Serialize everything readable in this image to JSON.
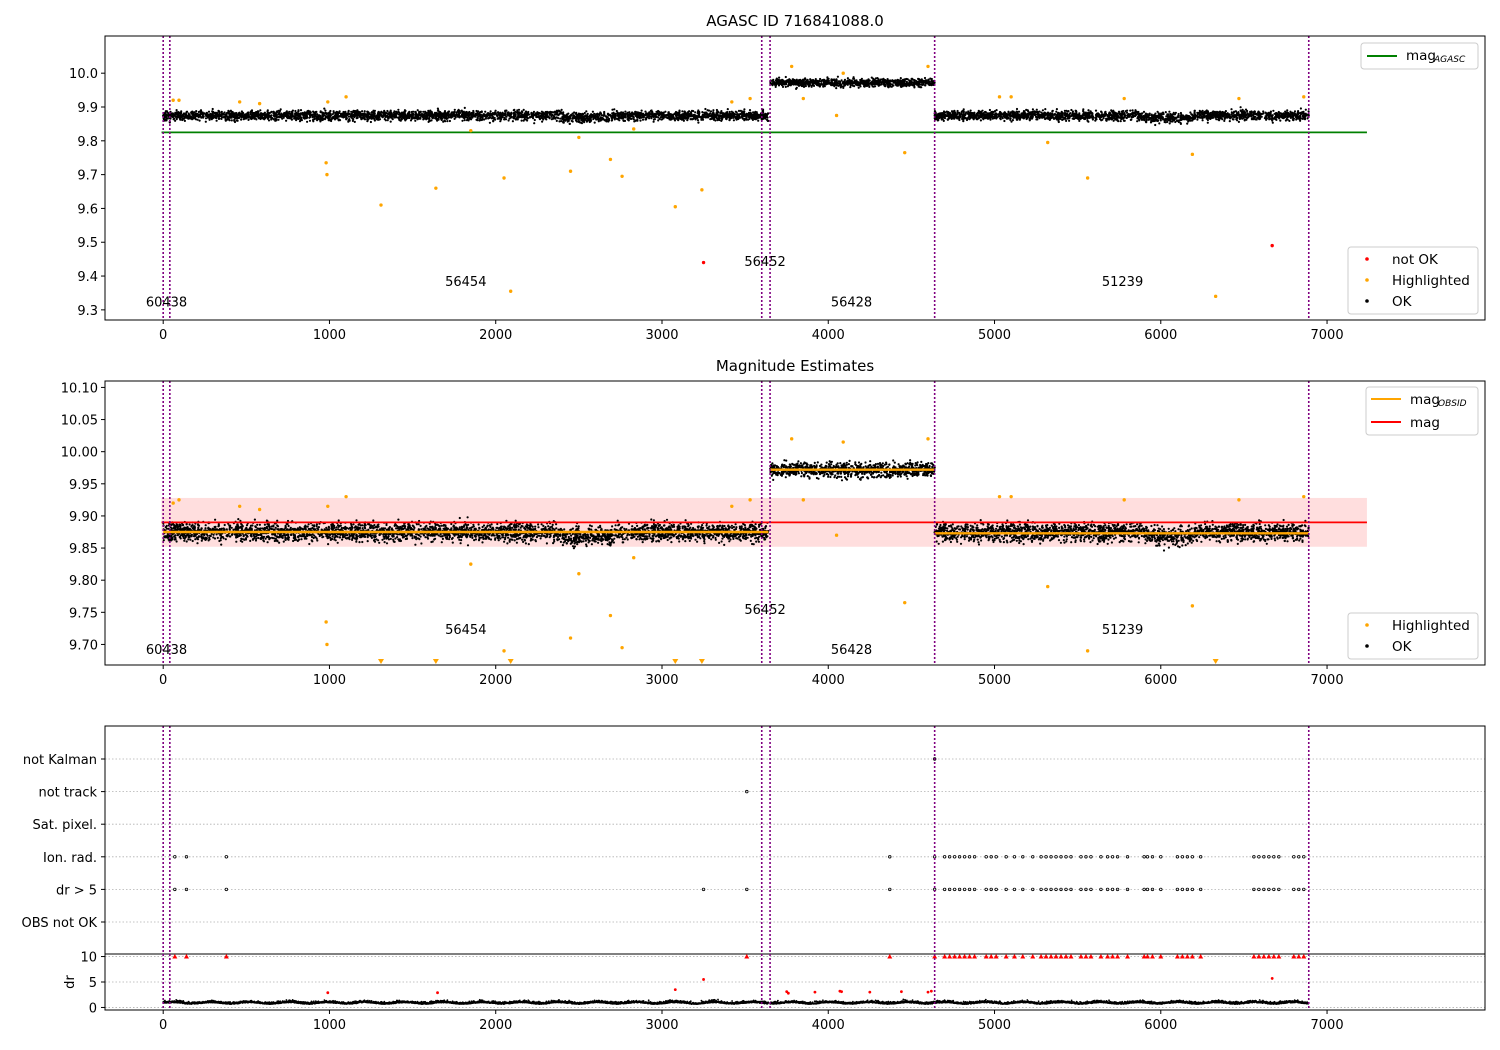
{
  "chart_data": [
    {
      "type": "scatter",
      "title": "AGASC ID 716841088.0",
      "xlim": [
        -350,
        7950
      ],
      "ylim": [
        9.27,
        10.11
      ],
      "xticks": [
        0,
        1000,
        2000,
        3000,
        4000,
        5000,
        6000,
        7000
      ],
      "yticks": [
        9.3,
        9.4,
        9.5,
        9.6,
        9.7,
        9.8,
        9.9,
        10.0
      ],
      "yticklabels": [
        "9.3",
        "9.4",
        "9.5",
        "9.6",
        "9.7",
        "9.8",
        "9.9",
        "10.0"
      ],
      "obs_boundaries": [
        0,
        40,
        3600,
        3650,
        4640,
        6890
      ],
      "obsids": [
        {
          "label": "60438",
          "x": 20,
          "y": 9.31
        },
        {
          "label": "56454",
          "x": 1820,
          "y": 9.37
        },
        {
          "label": "56452",
          "x": 3620,
          "y": 9.43
        },
        {
          "label": "56428",
          "x": 4140,
          "y": 9.31
        },
        {
          "label": "51239",
          "x": 5770,
          "y": 9.37
        }
      ],
      "mag_agasc": {
        "value": 9.825,
        "x_range": [
          -10,
          7240
        ]
      },
      "ok_segments": [
        {
          "x0": 0,
          "x1": 3640,
          "mean": 9.875,
          "spread": 0.022
        },
        {
          "x0": 3650,
          "x1": 4640,
          "mean": 9.972,
          "spread": 0.018
        },
        {
          "x0": 4640,
          "x1": 6890,
          "mean": 9.875,
          "spread": 0.022
        }
      ],
      "highlighted": [
        [
          60,
          9.92
        ],
        [
          95,
          9.92
        ],
        [
          460,
          9.915
        ],
        [
          580,
          9.91
        ],
        [
          980,
          9.735
        ],
        [
          985,
          9.7
        ],
        [
          990,
          9.915
        ],
        [
          1100,
          9.93
        ],
        [
          1310,
          9.61
        ],
        [
          1640,
          9.66
        ],
        [
          1850,
          9.83
        ],
        [
          2050,
          9.69
        ],
        [
          2090,
          9.355
        ],
        [
          2450,
          9.71
        ],
        [
          2500,
          9.81
        ],
        [
          2690,
          9.745
        ],
        [
          2760,
          9.695
        ],
        [
          2830,
          9.835
        ],
        [
          3080,
          9.605
        ],
        [
          3240,
          9.655
        ],
        [
          3420,
          9.915
        ],
        [
          3530,
          9.925
        ],
        [
          3780,
          10.02
        ],
        [
          3850,
          9.925
        ],
        [
          4050,
          9.875
        ],
        [
          4090,
          10.0
        ],
        [
          4460,
          9.765
        ],
        [
          4600,
          10.02
        ],
        [
          5030,
          9.93
        ],
        [
          5100,
          9.93
        ],
        [
          5320,
          9.795
        ],
        [
          5560,
          9.69
        ],
        [
          5780,
          9.925
        ],
        [
          6190,
          9.76
        ],
        [
          6330,
          9.34
        ],
        [
          6470,
          9.925
        ],
        [
          6860,
          9.93
        ]
      ],
      "not_ok": [
        [
          3250,
          9.44
        ],
        [
          6670,
          9.49
        ]
      ],
      "legend_top": [
        {
          "label": "mag",
          "sub": "AGASC",
          "color": "#008000"
        }
      ],
      "legend_bottom": [
        {
          "label": "not OK",
          "color": "#ff0000"
        },
        {
          "label": "Highlighted",
          "color": "#ffa500"
        },
        {
          "label": "OK",
          "color": "#000000"
        }
      ]
    },
    {
      "type": "scatter",
      "title": "Magnitude Estimates",
      "xlim": [
        -350,
        7950
      ],
      "ylim": [
        9.668,
        10.11
      ],
      "xticks": [
        0,
        1000,
        2000,
        3000,
        4000,
        5000,
        6000,
        7000
      ],
      "yticks": [
        9.7,
        9.75,
        9.8,
        9.85,
        9.9,
        9.95,
        10.0,
        10.05,
        10.1
      ],
      "yticklabels": [
        "9.70",
        "9.75",
        "9.80",
        "9.85",
        "9.90",
        "9.95",
        "10.00",
        "10.05",
        "10.10"
      ],
      "obs_boundaries": [
        0,
        40,
        3600,
        3650,
        4640,
        6890
      ],
      "obsids": [
        {
          "label": "60438",
          "x": 20,
          "y": 9.685
        },
        {
          "label": "56454",
          "x": 1820,
          "y": 9.716
        },
        {
          "label": "56452",
          "x": 3620,
          "y": 9.747
        },
        {
          "label": "56428",
          "x": 4140,
          "y": 9.685
        },
        {
          "label": "51239",
          "x": 5770,
          "y": 9.716
        }
      ],
      "mag": {
        "value": 9.89,
        "band": [
          9.852,
          9.928
        ],
        "x_range": [
          -10,
          7240
        ]
      },
      "mag_obsid": [
        {
          "x0": 0,
          "x1": 3640,
          "value": 9.875
        },
        {
          "x0": 3650,
          "x1": 4640,
          "value": 9.972
        },
        {
          "x0": 4640,
          "x1": 6890,
          "value": 9.873
        }
      ],
      "ok_segments": [
        {
          "x0": 0,
          "x1": 3640,
          "mean": 9.875,
          "spread": 0.022
        },
        {
          "x0": 3650,
          "x1": 4640,
          "mean": 9.972,
          "spread": 0.018
        },
        {
          "x0": 4640,
          "x1": 6890,
          "mean": 9.875,
          "spread": 0.022
        }
      ],
      "highlighted": [
        [
          60,
          9.92
        ],
        [
          95,
          9.925
        ],
        [
          460,
          9.915
        ],
        [
          580,
          9.91
        ],
        [
          980,
          9.735
        ],
        [
          985,
          9.7
        ],
        [
          990,
          9.915
        ],
        [
          1100,
          9.93
        ],
        [
          1850,
          9.825
        ],
        [
          2050,
          9.69
        ],
        [
          2450,
          9.71
        ],
        [
          2500,
          9.81
        ],
        [
          2690,
          9.745
        ],
        [
          2760,
          9.695
        ],
        [
          2830,
          9.835
        ],
        [
          3420,
          9.915
        ],
        [
          3530,
          9.925
        ],
        [
          3780,
          10.02
        ],
        [
          3850,
          9.925
        ],
        [
          4050,
          9.87
        ],
        [
          4090,
          10.015
        ],
        [
          4460,
          9.765
        ],
        [
          4600,
          10.02
        ],
        [
          5030,
          9.93
        ],
        [
          5100,
          9.93
        ],
        [
          5320,
          9.79
        ],
        [
          5560,
          9.69
        ],
        [
          5780,
          9.925
        ],
        [
          6190,
          9.76
        ],
        [
          6470,
          9.925
        ],
        [
          6860,
          9.93
        ]
      ],
      "off_scale_low": [
        1310,
        1640,
        2090,
        3080,
        3240,
        6330
      ],
      "legend_top": [
        {
          "label": "mag",
          "sub": "OBSID",
          "color": "#ffa500"
        },
        {
          "label": "mag",
          "sub": "",
          "color": "#ff0000"
        }
      ],
      "legend_bottom": [
        {
          "label": "Highlighted",
          "color": "#ffa500"
        },
        {
          "label": "OK",
          "color": "#000000"
        }
      ]
    },
    {
      "type": "scatter",
      "xlim": [
        -350,
        7950
      ],
      "xticks": [
        0,
        1000,
        2000,
        3000,
        4000,
        5000,
        6000,
        7000
      ],
      "obs_boundaries": [
        0,
        40,
        3600,
        3650,
        4640,
        6890
      ],
      "flag_rows": [
        "not Kalman",
        "not track",
        "Sat. pixel.",
        "Ion. rad.",
        "dr > 5",
        "OBS not OK"
      ],
      "flags": {
        "not Kalman": [
          4640
        ],
        "not track": [
          3510
        ],
        "Sat. pixel.": [],
        "Ion. rad.": [
          70,
          140,
          380,
          4370,
          4640,
          4700,
          4730,
          4760,
          4790,
          4820,
          4850,
          4880,
          4950,
          4980,
          5010,
          5070,
          5120,
          5170,
          5230,
          5280,
          5310,
          5340,
          5370,
          5400,
          5430,
          5460,
          5520,
          5550,
          5580,
          5640,
          5680,
          5710,
          5740,
          5800,
          5900,
          5920,
          5950,
          6000,
          6100,
          6130,
          6160,
          6190,
          6240,
          6560,
          6590,
          6620,
          6650,
          6680,
          6710,
          6800,
          6830,
          6860
        ],
        "dr > 5": [
          70,
          140,
          380,
          3250,
          3510,
          4370,
          4640,
          4700,
          4730,
          4760,
          4790,
          4820,
          4850,
          4880,
          4950,
          4980,
          5010,
          5070,
          5120,
          5170,
          5230,
          5280,
          5310,
          5340,
          5370,
          5400,
          5430,
          5460,
          5520,
          5550,
          5580,
          5640,
          5680,
          5710,
          5740,
          5800,
          5900,
          5920,
          5950,
          6000,
          6100,
          6130,
          6160,
          6190,
          6240,
          6560,
          6590,
          6620,
          6650,
          6680,
          6710,
          6800,
          6830,
          6860
        ],
        "OBS not OK": []
      },
      "dr": {
        "ylim": [
          -0.5,
          10.5
        ],
        "yticks": [
          0,
          5,
          10
        ],
        "yticklabels": [
          "0",
          "5",
          "10"
        ],
        "ylabel": "dr",
        "baseline_mean": 0.8,
        "red_high": [
          70,
          140,
          380,
          3510,
          4370,
          4640,
          4700,
          4730,
          4760,
          4790,
          4820,
          4850,
          4880,
          4950,
          4980,
          5010,
          5070,
          5120,
          5170,
          5230,
          5280,
          5310,
          5340,
          5370,
          5400,
          5430,
          5460,
          5520,
          5550,
          5580,
          5640,
          5680,
          5710,
          5740,
          5800,
          5900,
          5920,
          5950,
          6000,
          6100,
          6130,
          6160,
          6190,
          6240,
          6560,
          6590,
          6620,
          6650,
          6680,
          6710,
          6800,
          6830,
          6860
        ],
        "red_mid": [
          [
            990,
            2.9
          ],
          [
            1650,
            2.9
          ],
          [
            3080,
            3.5
          ],
          [
            3250,
            5.5
          ],
          [
            3750,
            3.1
          ],
          [
            3760,
            2.8
          ],
          [
            3920,
            3.0
          ],
          [
            4070,
            3.2
          ],
          [
            4080,
            3.1
          ],
          [
            4250,
            3.0
          ],
          [
            4440,
            3.1
          ],
          [
            4600,
            3.0
          ],
          [
            4620,
            3.2
          ],
          [
            6670,
            5.7
          ]
        ]
      }
    }
  ],
  "colors": {
    "ok": "#000000",
    "highlighted": "#ffa500",
    "not_ok": "#ff0000",
    "mag_agasc": "#008000",
    "mag": "#ff0000",
    "mag_obsid": "#ffa500",
    "band": "#ffdede",
    "boundary": "#800080",
    "grid": "#b0b0b0"
  }
}
